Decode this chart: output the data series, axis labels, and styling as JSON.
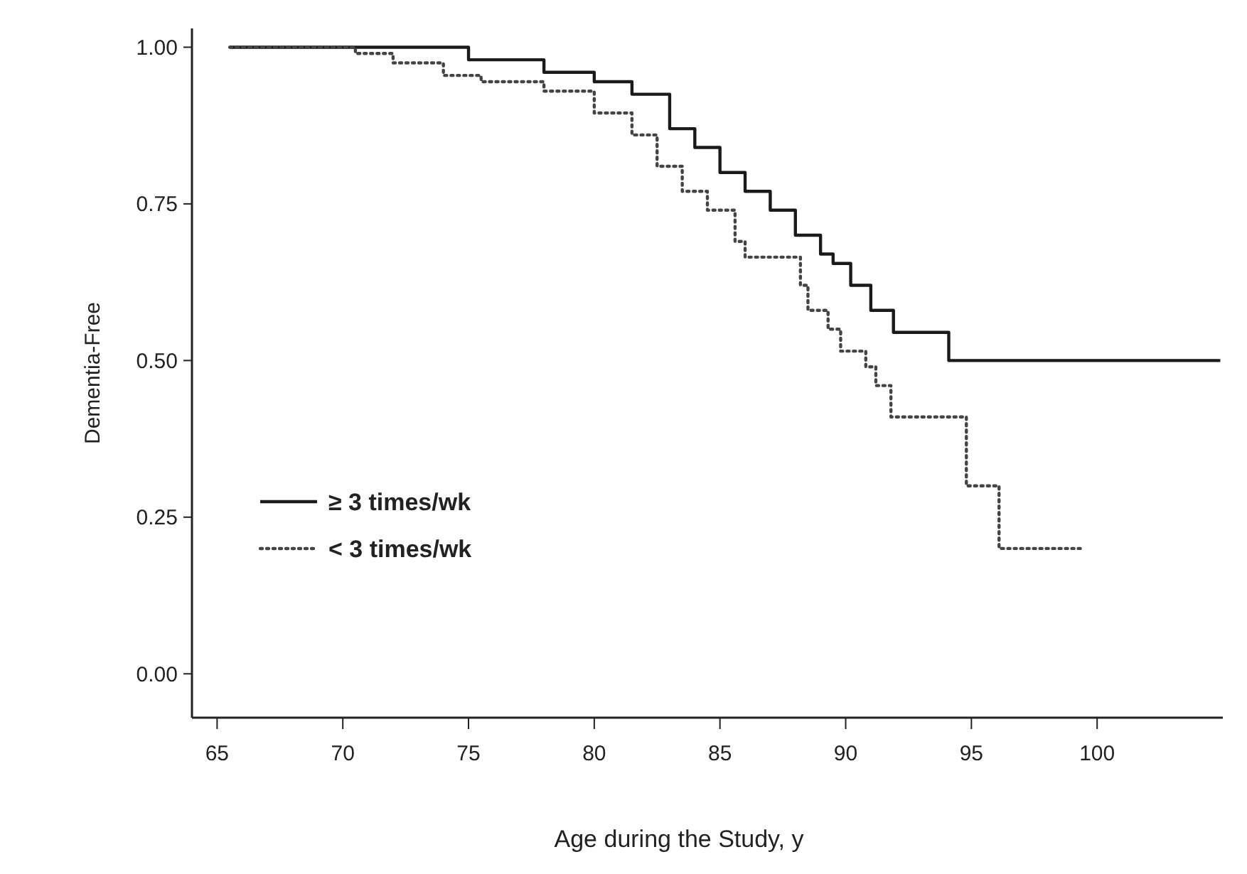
{
  "chart_data": {
    "type": "step",
    "xlabel": "Age during the Study, y",
    "ylabel": "Dementia-Free",
    "xlim": [
      64,
      105
    ],
    "xticks": [
      65,
      70,
      75,
      80,
      85,
      90,
      95,
      100
    ],
    "ylim": [
      -0.07,
      1.03
    ],
    "yticks": [
      {
        "value": 0,
        "label": "0.00"
      },
      {
        "value": 0.25,
        "label": "0.25"
      },
      {
        "value": 0.5,
        "label": "0.50"
      },
      {
        "value": 0.75,
        "label": "0.75"
      },
      {
        "value": 1,
        "label": "1.00"
      }
    ],
    "grid": false,
    "legend": "left",
    "marker": "none",
    "series": [
      {
        "name": "≥ 3 times/wk",
        "color": "#1a1a1a",
        "line_style": "solid",
        "x": [
          65.5,
          72.5,
          75,
          78,
          80,
          81.5,
          83,
          84,
          85,
          86,
          87,
          88,
          89,
          89.5,
          90.2,
          91,
          91.9,
          94.1,
          104.9
        ],
        "values": [
          1,
          1,
          0.98,
          0.96,
          0.945,
          0.925,
          0.87,
          0.84,
          0.8,
          0.77,
          0.74,
          0.7,
          0.67,
          0.655,
          0.62,
          0.58,
          0.545,
          0.5,
          0.5
        ]
      },
      {
        "name": "< 3 times/wk",
        "color": "#444444",
        "line_style": "dotted",
        "x": [
          65.5,
          69.5,
          70.5,
          72,
          74,
          75.5,
          78,
          80,
          81.5,
          82.5,
          83.5,
          84.5,
          85.6,
          86,
          87.6,
          88.2,
          88.5,
          89.3,
          89.8,
          90.8,
          91.2,
          91.8,
          94.8,
          96.1,
          99.4
        ],
        "values": [
          1,
          1,
          0.99,
          0.975,
          0.955,
          0.945,
          0.93,
          0.895,
          0.86,
          0.81,
          0.77,
          0.74,
          0.69,
          0.665,
          0.665,
          0.62,
          0.58,
          0.55,
          0.515,
          0.49,
          0.46,
          0.41,
          0.3,
          0.2,
          0.2
        ]
      }
    ]
  }
}
